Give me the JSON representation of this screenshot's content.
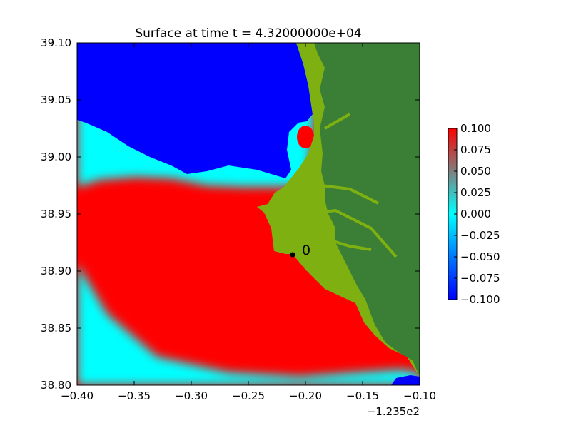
{
  "chart_data": {
    "type": "heatmap",
    "title": "Surface at time t = 4.32000000e+04",
    "xlabel": "",
    "ylabel": "",
    "x_offset_label": "−1.235e2",
    "xlim": [
      -0.4,
      -0.1
    ],
    "ylim": [
      38.8,
      39.1
    ],
    "x_ticks": [
      -0.4,
      -0.35,
      -0.3,
      -0.25,
      -0.2,
      -0.15,
      -0.1
    ],
    "x_tick_labels": [
      "−0.40",
      "−0.35",
      "−0.30",
      "−0.25",
      "−0.20",
      "−0.15",
      "−0.10"
    ],
    "y_ticks": [
      38.8,
      38.85,
      38.9,
      38.95,
      39.0,
      39.05,
      39.1
    ],
    "y_tick_labels": [
      "38.80",
      "38.85",
      "38.90",
      "38.95",
      "39.00",
      "39.05",
      "39.10"
    ],
    "colorbar": {
      "range": [
        -0.1,
        0.1
      ],
      "ticks": [
        0.1,
        0.075,
        0.05,
        0.025,
        0.0,
        -0.025,
        -0.05,
        -0.075,
        -0.1
      ],
      "tick_labels": [
        "0.100",
        "0.075",
        "0.050",
        "0.025",
        "0.000",
        "−0.025",
        "−0.050",
        "−0.075",
        "−0.100"
      ],
      "colors": [
        "#0000ff",
        "#00ffff",
        "#ff0000"
      ]
    },
    "gauge": {
      "label": "0",
      "x": -0.212,
      "y": 38.914
    },
    "regions": [
      {
        "name": "surface-high",
        "value": 0.1,
        "color": "#ff0000"
      },
      {
        "name": "surface-low",
        "value": -0.1,
        "color": "#0000ff"
      },
      {
        "name": "land",
        "color": "#3a7f35"
      },
      {
        "name": "lowland",
        "color": "#7fb012"
      }
    ]
  }
}
